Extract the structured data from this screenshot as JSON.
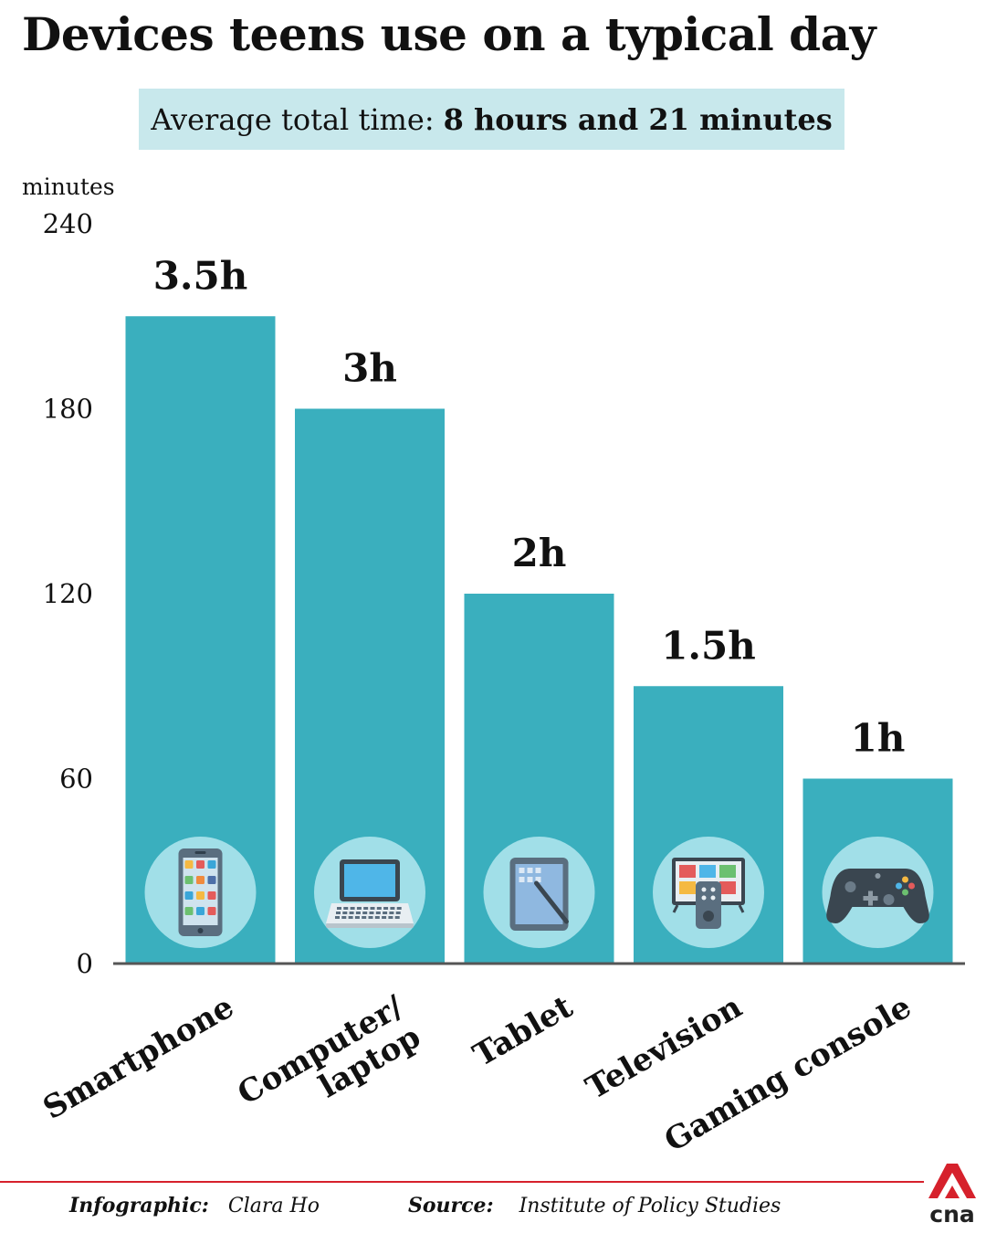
{
  "title": "Devices teens use on a typical day",
  "summary": {
    "label": "Average total time:",
    "value": "8 hours and 21 minutes"
  },
  "footer": {
    "credit_label": "Infographic:",
    "credit_name": "Clara Ho",
    "source_label": "Source:",
    "source_name": "Institute of Policy Studies"
  },
  "logo_text": "cna",
  "colors": {
    "bar": "#3aafbe",
    "icon_circle": "#a1dfe8",
    "accent": "#d6212c",
    "summary_bg": "#c8e8ec"
  },
  "chart_data": {
    "type": "bar",
    "ylabel": "minutes",
    "ylim": [
      0,
      240
    ],
    "yticks": [
      0,
      60,
      120,
      180,
      240
    ],
    "categories": [
      {
        "lines": [
          "Smartphone"
        ],
        "icon": "smartphone-icon"
      },
      {
        "lines": [
          "Computer/",
          "laptop"
        ],
        "icon": "laptop-icon"
      },
      {
        "lines": [
          "Tablet"
        ],
        "icon": "tablet-icon"
      },
      {
        "lines": [
          "Television"
        ],
        "icon": "television-icon"
      },
      {
        "lines": [
          "Gaming console"
        ],
        "icon": "game-controller-icon"
      }
    ],
    "values": [
      210,
      180,
      120,
      90,
      60
    ],
    "data_labels": [
      "3.5h",
      "3h",
      "2h",
      "1.5h",
      "1h"
    ]
  }
}
